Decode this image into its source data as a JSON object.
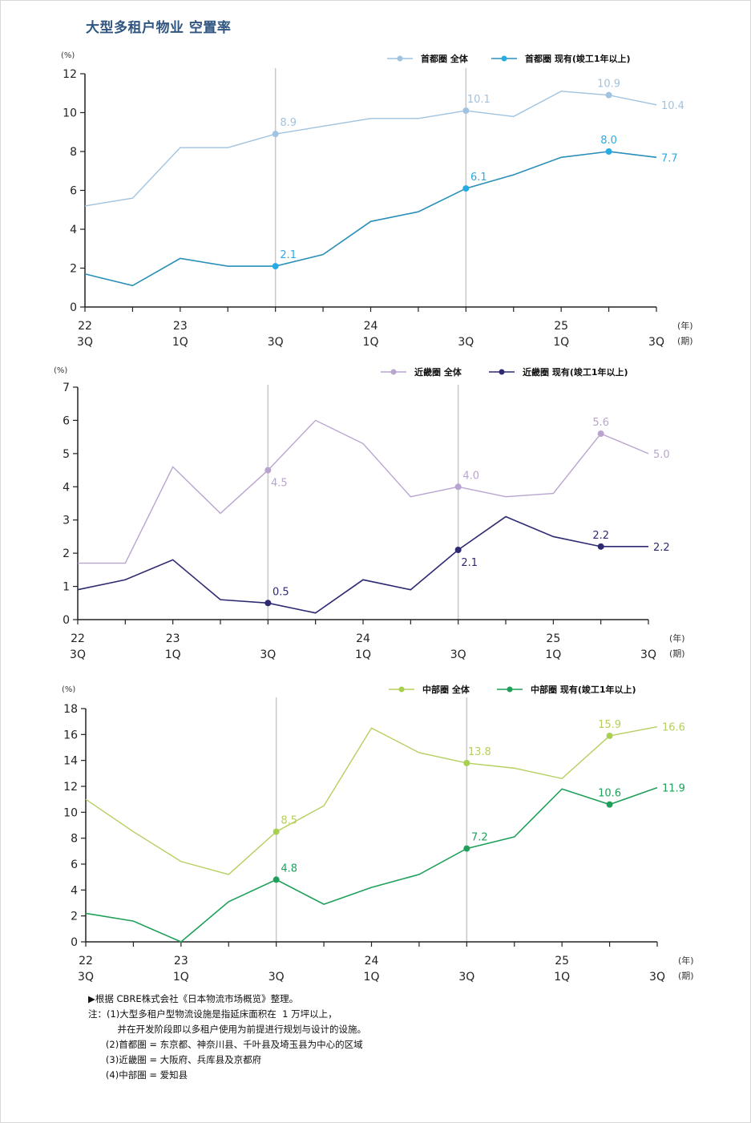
{
  "page_title": "大型多租户物业  空置率",
  "chart_data": [
    {
      "type": "line",
      "title": "首都圈",
      "ylabel": "(%)",
      "xlabel_year": "(年)",
      "xlabel_quarter": "(期)",
      "ylim": [
        0,
        12
      ],
      "yticks": [
        0,
        2,
        4,
        6,
        8,
        10,
        12
      ],
      "categories": [
        "22 3Q",
        "22 4Q",
        "23 1Q",
        "23 2Q",
        "23 3Q",
        "23 4Q",
        "24 1Q",
        "24 2Q",
        "24 3Q",
        "24 4Q",
        "25 1Q",
        "25 2Q",
        "25 3Q"
      ],
      "tick_labels": [
        {
          "index": 0,
          "year": "22",
          "quarter": "3Q"
        },
        {
          "index": 2,
          "year": "23",
          "quarter": "1Q"
        },
        {
          "index": 4,
          "year": "",
          "quarter": "3Q"
        },
        {
          "index": 6,
          "year": "24",
          "quarter": "1Q"
        },
        {
          "index": 8,
          "year": "",
          "quarter": "3Q"
        },
        {
          "index": 10,
          "year": "25",
          "quarter": "1Q"
        },
        {
          "index": 12,
          "year": "",
          "quarter": "3Q"
        }
      ],
      "vertical_guides": [
        4,
        8
      ],
      "legend_position": "top-right",
      "series": [
        {
          "name": "首都圈 全体",
          "color": "#9fc3e0",
          "dot_color": "#9fc3e0",
          "label_color": "#9fc3e0",
          "values": [
            5.2,
            5.6,
            8.2,
            8.2,
            8.9,
            9.3,
            9.7,
            9.7,
            10.1,
            9.8,
            11.1,
            10.9,
            10.4
          ],
          "labels": [
            {
              "index": 4,
              "text": "8.9",
              "pos": "above"
            },
            {
              "index": 8,
              "text": "10.1",
              "pos": "above"
            },
            {
              "index": 11,
              "text": "10.9",
              "pos": "above"
            },
            {
              "index": 12,
              "text": "10.4",
              "pos": "right"
            }
          ],
          "dots": [
            4,
            8,
            11
          ]
        },
        {
          "name": "首都圈 现有(竣工1年以上)",
          "color": "#2a8fb8",
          "dot_color": "#29abe2",
          "label_color": "#29abe2",
          "values": [
            1.7,
            1.1,
            2.5,
            2.1,
            2.1,
            2.7,
            4.4,
            4.9,
            6.1,
            6.8,
            7.7,
            8.0,
            7.7
          ],
          "labels": [
            {
              "index": 4,
              "text": "2.1",
              "pos": "above"
            },
            {
              "index": 8,
              "text": "6.1",
              "pos": "above"
            },
            {
              "index": 11,
              "text": "8.0",
              "pos": "above"
            },
            {
              "index": 12,
              "text": "7.7",
              "pos": "right"
            }
          ],
          "dots": [
            4,
            8,
            11
          ]
        }
      ]
    },
    {
      "type": "line",
      "title": "近畿圈",
      "ylabel": "(%)",
      "xlabel_year": "(年)",
      "xlabel_quarter": "(期)",
      "ylim": [
        0,
        7
      ],
      "yticks": [
        0,
        1,
        2,
        3,
        4,
        5,
        6,
        7
      ],
      "categories": [
        "22 3Q",
        "22 4Q",
        "23 1Q",
        "23 2Q",
        "23 3Q",
        "23 4Q",
        "24 1Q",
        "24 2Q",
        "24 3Q",
        "24 4Q",
        "25 1Q",
        "25 2Q",
        "25 3Q"
      ],
      "tick_labels": [
        {
          "index": 0,
          "year": "22",
          "quarter": "3Q"
        },
        {
          "index": 2,
          "year": "23",
          "quarter": "1Q"
        },
        {
          "index": 4,
          "year": "",
          "quarter": "3Q"
        },
        {
          "index": 6,
          "year": "24",
          "quarter": "1Q"
        },
        {
          "index": 8,
          "year": "",
          "quarter": "3Q"
        },
        {
          "index": 10,
          "year": "25",
          "quarter": "1Q"
        },
        {
          "index": 12,
          "year": "",
          "quarter": "3Q"
        }
      ],
      "vertical_guides": [
        4,
        8
      ],
      "legend_position": "top-right",
      "series": [
        {
          "name": "近畿圈 全体",
          "color": "#b9a4cf",
          "dot_color": "#b9a4cf",
          "label_color": "#b9a4cf",
          "values": [
            1.7,
            1.7,
            4.6,
            3.2,
            4.5,
            6.0,
            5.3,
            3.7,
            4.0,
            3.7,
            3.8,
            5.6,
            5.0
          ],
          "labels": [
            {
              "index": 4,
              "text": "4.5",
              "pos": "below"
            },
            {
              "index": 8,
              "text": "4.0",
              "pos": "above"
            },
            {
              "index": 11,
              "text": "5.6",
              "pos": "above"
            },
            {
              "index": 12,
              "text": "5.0",
              "pos": "right"
            }
          ],
          "dots": [
            4,
            8,
            11
          ]
        },
        {
          "name": "近畿圈 现有(竣工1年以上)",
          "color": "#2e2a72",
          "dot_color": "#2e2a72",
          "label_color": "#2e2a72",
          "values": [
            0.9,
            1.2,
            1.8,
            0.6,
            0.5,
            0.2,
            1.2,
            0.9,
            2.1,
            3.1,
            2.5,
            2.2,
            2.2
          ],
          "labels": [
            {
              "index": 4,
              "text": "0.5",
              "pos": "above"
            },
            {
              "index": 8,
              "text": "2.1",
              "pos": "below"
            },
            {
              "index": 11,
              "text": "2.2",
              "pos": "above"
            },
            {
              "index": 12,
              "text": "2.2",
              "pos": "right"
            }
          ],
          "dots": [
            4,
            8,
            11
          ]
        }
      ]
    },
    {
      "type": "line",
      "title": "中部圈",
      "ylabel": "(%)",
      "xlabel_year": "(年)",
      "xlabel_quarter": "(期)",
      "ylim": [
        0,
        18
      ],
      "yticks": [
        0,
        2,
        4,
        6,
        8,
        10,
        12,
        14,
        16,
        18
      ],
      "categories": [
        "22 3Q",
        "22 4Q",
        "23 1Q",
        "23 2Q",
        "23 3Q",
        "23 4Q",
        "24 1Q",
        "24 2Q",
        "24 3Q",
        "24 4Q",
        "25 1Q",
        "25 2Q",
        "25 3Q"
      ],
      "tick_labels": [
        {
          "index": 0,
          "year": "22",
          "quarter": "3Q"
        },
        {
          "index": 2,
          "year": "23",
          "quarter": "1Q"
        },
        {
          "index": 4,
          "year": "",
          "quarter": "3Q"
        },
        {
          "index": 6,
          "year": "24",
          "quarter": "1Q"
        },
        {
          "index": 8,
          "year": "",
          "quarter": "3Q"
        },
        {
          "index": 10,
          "year": "25",
          "quarter": "1Q"
        },
        {
          "index": 12,
          "year": "",
          "quarter": "3Q"
        }
      ],
      "vertical_guides": [
        4,
        8
      ],
      "legend_position": "top-right",
      "series": [
        {
          "name": "中部圈 全体",
          "color": "#b5cf5f",
          "dot_color": "#a9cf4f",
          "label_color": "#b5cf5f",
          "values": [
            11.0,
            8.5,
            6.2,
            5.2,
            8.5,
            10.5,
            16.5,
            14.6,
            13.8,
            13.4,
            12.6,
            15.9,
            16.6
          ],
          "labels": [
            {
              "index": 4,
              "text": "8.5",
              "pos": "above"
            },
            {
              "index": 8,
              "text": "13.8",
              "pos": "above"
            },
            {
              "index": 11,
              "text": "15.9",
              "pos": "above"
            },
            {
              "index": 12,
              "text": "16.6",
              "pos": "right"
            }
          ],
          "dots": [
            4,
            8,
            11
          ]
        },
        {
          "name": "中部圈 现有(竣工1年以上)",
          "color": "#1fa05a",
          "dot_color": "#1fa05a",
          "label_color": "#1fa05a",
          "values": [
            2.2,
            1.6,
            0.0,
            3.1,
            4.8,
            2.9,
            4.2,
            5.2,
            7.2,
            8.1,
            11.8,
            10.6,
            11.9
          ],
          "labels": [
            {
              "index": 4,
              "text": "4.8",
              "pos": "above"
            },
            {
              "index": 8,
              "text": "7.2",
              "pos": "above"
            },
            {
              "index": 11,
              "text": "10.6",
              "pos": "above"
            },
            {
              "index": 12,
              "text": "11.9",
              "pos": "right"
            }
          ],
          "dots": [
            4,
            8,
            11
          ]
        }
      ]
    }
  ],
  "notes": {
    "source": "▶根据 CBRE株式会社《日本物流市场概览》整理。",
    "line1": "注：(1)大型多租户型物流设施是指延床面积在  1 万坪以上，",
    "line2": "          并在开发阶段即以多租户使用为前提进行规划与设计的设施。",
    "line3": "      (2)首都圏 = 东京都、神奈川县、千叶县及埼玉县为中心的区域",
    "line4": "      (3)近畿圏 = 大阪府、兵库县及京都府",
    "line5": "      (4)中部圏 = 爱知县"
  }
}
